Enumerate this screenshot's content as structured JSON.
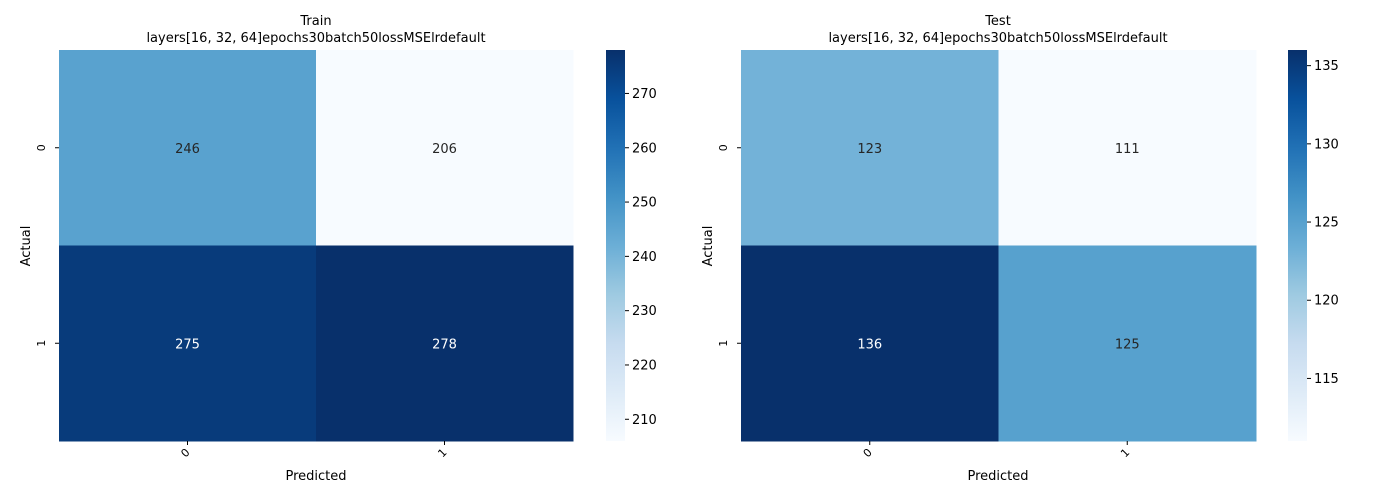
{
  "chart_data": [
    {
      "type": "heatmap",
      "title": "Train",
      "subtitle": "layers[16, 32, 64]epochs30batch50lossMSElrdefault",
      "xlabel": "Predicted",
      "ylabel": "Actual",
      "x_categories": [
        "0",
        "1"
      ],
      "y_categories": [
        "0",
        "1"
      ],
      "values": [
        [
          246,
          206
        ],
        [
          275,
          278
        ]
      ],
      "colormap": "Blues",
      "vmin": 206,
      "vmax": 278,
      "colorbar_ticks": [
        210,
        220,
        230,
        240,
        250,
        260,
        270
      ]
    },
    {
      "type": "heatmap",
      "title": "Test",
      "subtitle": "layers[16, 32, 64]epochs30batch50lossMSElrdefault",
      "xlabel": "Predicted",
      "ylabel": "Actual",
      "x_categories": [
        "0",
        "1"
      ],
      "y_categories": [
        "0",
        "1"
      ],
      "values": [
        [
          123,
          111
        ],
        [
          136,
          125
        ]
      ],
      "colormap": "Blues",
      "vmin": 111,
      "vmax": 136,
      "colorbar_ticks": [
        115,
        120,
        125,
        130,
        135
      ]
    }
  ]
}
